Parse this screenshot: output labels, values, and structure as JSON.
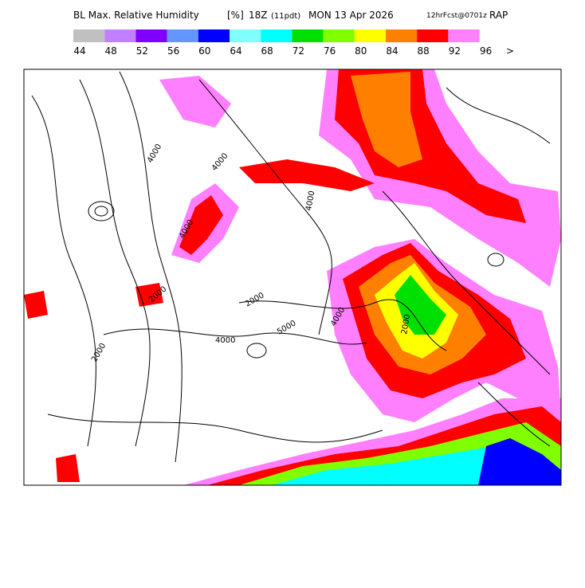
{
  "header": {
    "title": "BL Max. Relative Humidity",
    "units": "[%]",
    "valid_hour": "18Z",
    "local_time": "(11pdt)",
    "date": "MON 13 Apr 2026",
    "run": "12hrFcst@0701z",
    "model": "RAP"
  },
  "legend": {
    "colors": [
      "#c0c0c0",
      "#c080ff",
      "#8000ff",
      "#6496ff",
      "#0000ff",
      "#80ffff",
      "#00ffff",
      "#00e000",
      "#80ff00",
      "#ffff00",
      "#ff8000",
      "#ff0000",
      "#ff80ff"
    ],
    "labels": [
      44,
      48,
      52,
      56,
      60,
      64,
      68,
      72,
      76,
      80,
      84,
      88,
      92,
      96
    ],
    "overflow": ">"
  },
  "map": {
    "contour_labels": [
      "4000",
      "2000",
      "4000",
      "4000",
      "2000",
      "4000",
      "2000",
      "4000",
      "5000",
      "4000",
      "2000"
    ]
  }
}
